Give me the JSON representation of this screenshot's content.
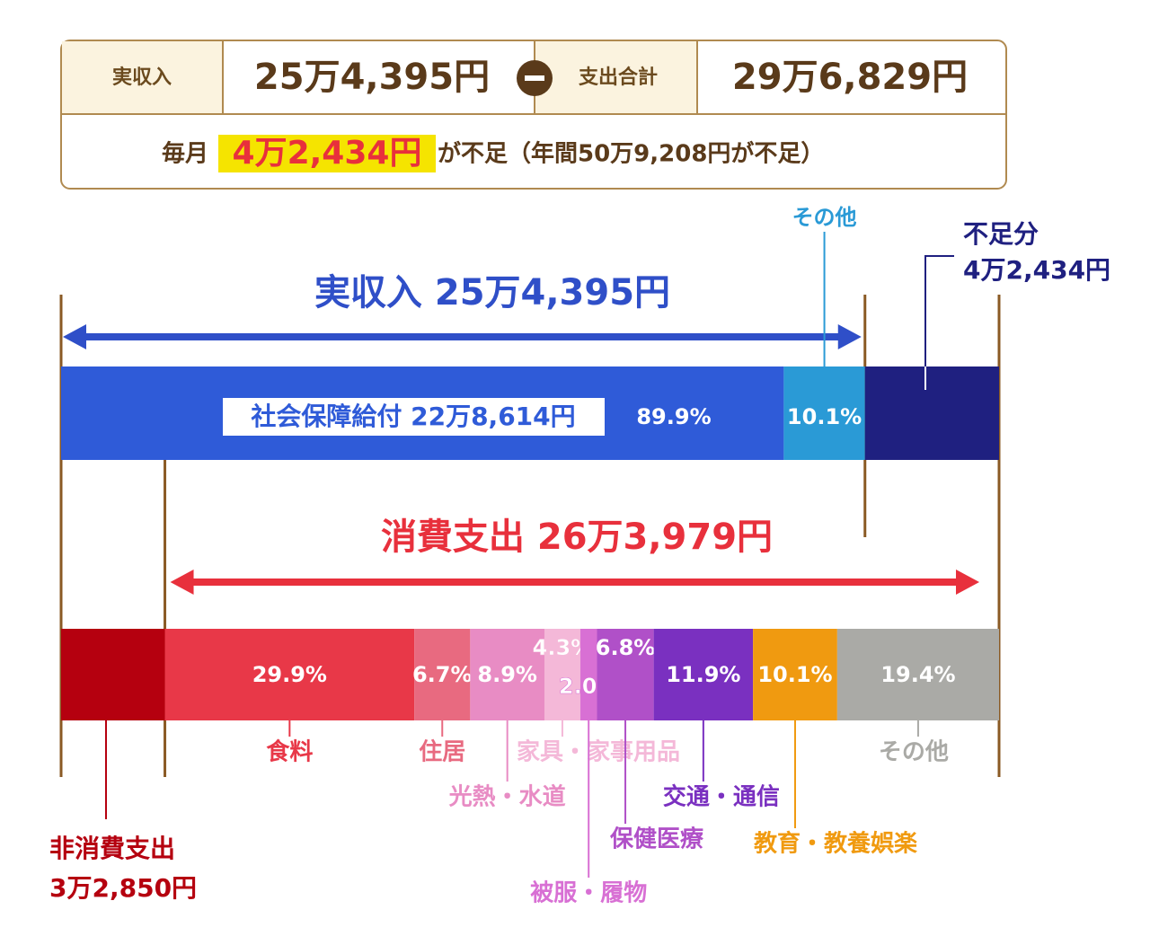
{
  "summary": {
    "income_label": "実収入",
    "income_value": "25万4,395円",
    "expense_label": "支出合計",
    "expense_value": "29万6,829円",
    "deficit_prefix": "毎月",
    "deficit_monthly": "4万2,434円",
    "deficit_suffix": "が不足（年間50万9,208円が不足）"
  },
  "income": {
    "title": "実収入 25万4,395円",
    "amount": 254395,
    "segments": [
      {
        "label": "社会保障給付 22万8,614円",
        "percent": 89.9,
        "value_label": "89.9%",
        "color": "#2f5bd8"
      },
      {
        "label": "その他",
        "percent": 10.1,
        "value_label": "10.1%",
        "color": "#2a9ad6"
      }
    ]
  },
  "shortfall": {
    "label": "不足分",
    "amount_label": "4万2,434円",
    "amount": 42434,
    "color": "#1f2080"
  },
  "expense": {
    "title": "消費支出 26万3,979円",
    "amount": 263979,
    "segments": [
      {
        "label": "食料",
        "percent": 29.9,
        "value_label": "29.9%",
        "color": "#e83848"
      },
      {
        "label": "住居",
        "percent": 6.7,
        "value_label": "6.7%",
        "color": "#e86a80"
      },
      {
        "label": "光熱・水道",
        "percent": 8.9,
        "value_label": "8.9%",
        "color": "#e88cc4"
      },
      {
        "label": "家具・家事用品",
        "percent": 4.3,
        "value_label": "4.3%",
        "color": "#f4b8d8"
      },
      {
        "label": "被服・履物",
        "percent": 2.0,
        "value_label": "2.0%",
        "color": "#d870d4"
      },
      {
        "label": "保健医療",
        "percent": 6.8,
        "value_label": "6.8%",
        "color": "#b050c8"
      },
      {
        "label": "交通・通信",
        "percent": 11.9,
        "value_label": "11.9%",
        "color": "#7a30c0"
      },
      {
        "label": "教育・教養娯楽",
        "percent": 10.1,
        "value_label": "10.1%",
        "color": "#f09a10"
      },
      {
        "label": "その他",
        "percent": 19.4,
        "value_label": "19.4%",
        "color": "#aaaaa6"
      }
    ]
  },
  "non_consumption": {
    "label": "非消費支出",
    "amount_label": "3万2,850円",
    "amount": 32850,
    "color": "#b5000f"
  }
}
